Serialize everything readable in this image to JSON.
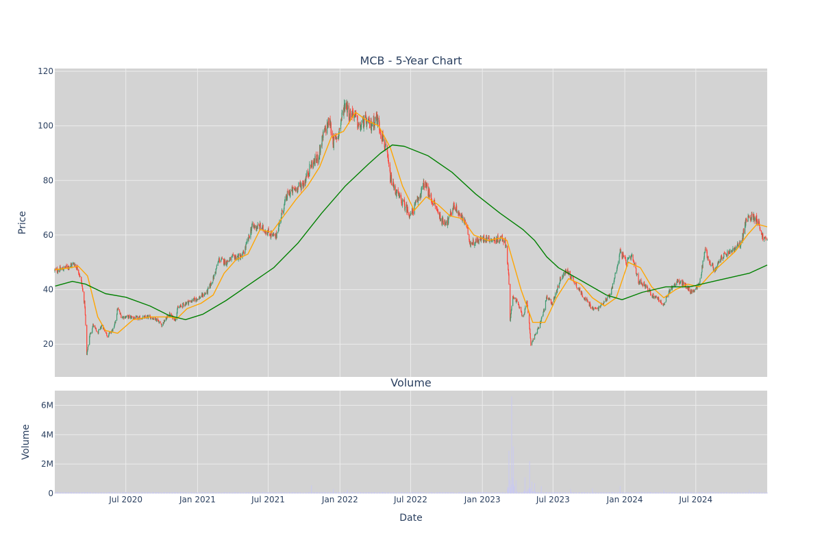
{
  "chart_data": [
    {
      "type": "candlestick",
      "title": "MCB - 5-Year Chart",
      "ylabel": "Price",
      "ylim": [
        8,
        121
      ],
      "yticks": [
        20,
        40,
        60,
        80,
        100,
        120
      ],
      "xlim": [
        "2020-01-01",
        "2024-12-31"
      ],
      "increasing_color": "#3d9970",
      "decreasing_color": "#ff4136",
      "ohlc_shape_points": [
        [
          "2020-01-02",
          47.0
        ],
        [
          "2020-01-20",
          47.5
        ],
        [
          "2020-02-05",
          48.5
        ],
        [
          "2020-02-20",
          49.5
        ],
        [
          "2020-03-02",
          47
        ],
        [
          "2020-03-10",
          42
        ],
        [
          "2020-03-18",
          34
        ],
        [
          "2020-03-23",
          16
        ],
        [
          "2020-03-30",
          23
        ],
        [
          "2020-04-08",
          27
        ],
        [
          "2020-04-20",
          24
        ],
        [
          "2020-05-01",
          27
        ],
        [
          "2020-05-15",
          23
        ],
        [
          "2020-06-01",
          26
        ],
        [
          "2020-06-10",
          33
        ],
        [
          "2020-06-20",
          30
        ],
        [
          "2020-07-10",
          30
        ],
        [
          "2020-08-01",
          29.5
        ],
        [
          "2020-09-01",
          30
        ],
        [
          "2020-09-20",
          29
        ],
        [
          "2020-10-01",
          27
        ],
        [
          "2020-10-20",
          31
        ],
        [
          "2020-11-05",
          29
        ],
        [
          "2020-11-10",
          33
        ],
        [
          "2020-12-01",
          35
        ],
        [
          "2021-01-05",
          37
        ],
        [
          "2021-01-25",
          39
        ],
        [
          "2021-02-10",
          44
        ],
        [
          "2021-02-25",
          51
        ],
        [
          "2021-03-15",
          50
        ],
        [
          "2021-04-05",
          52
        ],
        [
          "2021-04-25",
          52
        ],
        [
          "2021-05-10",
          58
        ],
        [
          "2021-05-20",
          63
        ],
        [
          "2021-06-10",
          63
        ],
        [
          "2021-07-01",
          61
        ],
        [
          "2021-07-20",
          59
        ],
        [
          "2021-08-05",
          68
        ],
        [
          "2021-08-20",
          75
        ],
        [
          "2021-09-10",
          77
        ],
        [
          "2021-09-30",
          79
        ],
        [
          "2021-10-20",
          86
        ],
        [
          "2021-11-05",
          88
        ],
        [
          "2021-11-20",
          97
        ],
        [
          "2021-12-05",
          102
        ],
        [
          "2021-12-15",
          94
        ],
        [
          "2021-12-28",
          97
        ],
        [
          "2022-01-05",
          103
        ],
        [
          "2022-01-15",
          109
        ],
        [
          "2022-01-25",
          104
        ],
        [
          "2022-02-05",
          105
        ],
        [
          "2022-02-20",
          99
        ],
        [
          "2022-03-05",
          102
        ],
        [
          "2022-03-20",
          100
        ],
        [
          "2022-04-05",
          103
        ],
        [
          "2022-04-20",
          96
        ],
        [
          "2022-05-01",
          90
        ],
        [
          "2022-05-10",
          81
        ],
        [
          "2022-05-20",
          77
        ],
        [
          "2022-06-05",
          73
        ],
        [
          "2022-06-20",
          70
        ],
        [
          "2022-07-01",
          67
        ],
        [
          "2022-07-20",
          73
        ],
        [
          "2022-08-05",
          79
        ],
        [
          "2022-08-20",
          74
        ],
        [
          "2022-09-01",
          71
        ],
        [
          "2022-09-20",
          65
        ],
        [
          "2022-10-05",
          65
        ],
        [
          "2022-10-20",
          71
        ],
        [
          "2022-11-05",
          67
        ],
        [
          "2022-11-20",
          64
        ],
        [
          "2022-12-01",
          57
        ],
        [
          "2022-12-20",
          58
        ],
        [
          "2023-01-10",
          59
        ],
        [
          "2023-02-01",
          58
        ],
        [
          "2023-02-20",
          59
        ],
        [
          "2023-03-02",
          57
        ],
        [
          "2023-03-09",
          46
        ],
        [
          "2023-03-13",
          28
        ],
        [
          "2023-03-20",
          38
        ],
        [
          "2023-04-01",
          35
        ],
        [
          "2023-04-15",
          30
        ],
        [
          "2023-04-25",
          35
        ],
        [
          "2023-05-01",
          28
        ],
        [
          "2023-05-05",
          20
        ],
        [
          "2023-05-15",
          23
        ],
        [
          "2023-05-25",
          26
        ],
        [
          "2023-06-05",
          31
        ],
        [
          "2023-06-15",
          37
        ],
        [
          "2023-06-30",
          35
        ],
        [
          "2023-07-20",
          44
        ],
        [
          "2023-08-05",
          47
        ],
        [
          "2023-08-20",
          44
        ],
        [
          "2023-09-10",
          39
        ],
        [
          "2023-09-25",
          36
        ],
        [
          "2023-10-10",
          33
        ],
        [
          "2023-10-25",
          33
        ],
        [
          "2023-11-10",
          36
        ],
        [
          "2023-11-25",
          38
        ],
        [
          "2023-12-10",
          47
        ],
        [
          "2023-12-20",
          54
        ],
        [
          "2024-01-05",
          50
        ],
        [
          "2024-01-20",
          52
        ],
        [
          "2024-02-05",
          43
        ],
        [
          "2024-02-20",
          42
        ],
        [
          "2024-03-10",
          38
        ],
        [
          "2024-03-25",
          37
        ],
        [
          "2024-04-10",
          34
        ],
        [
          "2024-04-25",
          40
        ],
        [
          "2024-05-15",
          43
        ],
        [
          "2024-06-01",
          42
        ],
        [
          "2024-06-20",
          39
        ],
        [
          "2024-07-10",
          42
        ],
        [
          "2024-07-25",
          55
        ],
        [
          "2024-08-05",
          50
        ],
        [
          "2024-08-20",
          47
        ],
        [
          "2024-09-05",
          52
        ],
        [
          "2024-09-20",
          53
        ],
        [
          "2024-10-10",
          55
        ],
        [
          "2024-10-25",
          57
        ],
        [
          "2024-11-06",
          65
        ],
        [
          "2024-11-20",
          67
        ],
        [
          "2024-12-05",
          66
        ],
        [
          "2024-12-20",
          59
        ],
        [
          "2024-12-31",
          58
        ]
      ],
      "overlays": [
        {
          "kind": "short moving average",
          "color": "#ffa500",
          "shape_points": [
            [
              "2020-01-02",
              47.3
            ],
            [
              "2020-02-10",
              48
            ],
            [
              "2020-03-01",
              48.6
            ],
            [
              "2020-03-25",
              45
            ],
            [
              "2020-04-20",
              30
            ],
            [
              "2020-05-10",
              25
            ],
            [
              "2020-06-10",
              24
            ],
            [
              "2020-07-20",
              29
            ],
            [
              "2020-09-01",
              30
            ],
            [
              "2020-10-15",
              30
            ],
            [
              "2020-11-10",
              29.5
            ],
            [
              "2020-12-05",
              33
            ],
            [
              "2021-01-10",
              35
            ],
            [
              "2021-02-10",
              38
            ],
            [
              "2021-03-10",
              46
            ],
            [
              "2021-04-10",
              51
            ],
            [
              "2021-05-10",
              53
            ],
            [
              "2021-06-10",
              62
            ],
            [
              "2021-07-10",
              61
            ],
            [
              "2021-08-10",
              67
            ],
            [
              "2021-09-10",
              73
            ],
            [
              "2021-10-10",
              78
            ],
            [
              "2021-11-10",
              85
            ],
            [
              "2021-12-10",
              96
            ],
            [
              "2022-01-10",
              98
            ],
            [
              "2022-02-10",
              105
            ],
            [
              "2022-03-10",
              102
            ],
            [
              "2022-04-10",
              100
            ],
            [
              "2022-05-10",
              92
            ],
            [
              "2022-06-10",
              78
            ],
            [
              "2022-07-10",
              69
            ],
            [
              "2022-08-10",
              74
            ],
            [
              "2022-09-10",
              71
            ],
            [
              "2022-10-10",
              67
            ],
            [
              "2022-11-10",
              66
            ],
            [
              "2022-12-10",
              60
            ],
            [
              "2023-01-15",
              58
            ],
            [
              "2023-02-20",
              59
            ],
            [
              "2023-03-05",
              58
            ],
            [
              "2023-04-10",
              40
            ],
            [
              "2023-05-10",
              28
            ],
            [
              "2023-06-10",
              28
            ],
            [
              "2023-07-10",
              37
            ],
            [
              "2023-08-10",
              44
            ],
            [
              "2023-09-10",
              42
            ],
            [
              "2023-10-10",
              37
            ],
            [
              "2023-11-10",
              34
            ],
            [
              "2023-12-10",
              37
            ],
            [
              "2024-01-10",
              50
            ],
            [
              "2024-02-10",
              48
            ],
            [
              "2024-03-10",
              41
            ],
            [
              "2024-04-10",
              37
            ],
            [
              "2024-05-10",
              40
            ],
            [
              "2024-06-10",
              42
            ],
            [
              "2024-07-10",
              41
            ],
            [
              "2024-08-10",
              46
            ],
            [
              "2024-09-10",
              50
            ],
            [
              "2024-10-10",
              54
            ],
            [
              "2024-11-10",
              60
            ],
            [
              "2024-12-05",
              64
            ],
            [
              "2024-12-31",
              63
            ]
          ]
        },
        {
          "kind": "long moving average",
          "color": "#008000",
          "shape_points": [
            [
              "2020-01-02",
              41.3
            ],
            [
              "2020-02-15",
              43
            ],
            [
              "2020-03-20",
              42
            ],
            [
              "2020-05-10",
              38.5
            ],
            [
              "2020-07-01",
              37.2
            ],
            [
              "2020-09-01",
              34
            ],
            [
              "2020-10-20",
              30.5
            ],
            [
              "2020-12-01",
              29
            ],
            [
              "2021-01-15",
              31
            ],
            [
              "2021-03-15",
              36
            ],
            [
              "2021-05-15",
              42
            ],
            [
              "2021-07-15",
              48
            ],
            [
              "2021-09-15",
              57
            ],
            [
              "2021-11-15",
              68
            ],
            [
              "2022-01-15",
              78
            ],
            [
              "2022-03-15",
              86
            ],
            [
              "2022-04-15",
              90
            ],
            [
              "2022-05-15",
              93
            ],
            [
              "2022-06-15",
              92.5
            ],
            [
              "2022-08-15",
              89
            ],
            [
              "2022-10-15",
              83
            ],
            [
              "2022-12-15",
              75
            ],
            [
              "2023-02-15",
              68
            ],
            [
              "2023-04-15",
              62
            ],
            [
              "2023-05-15",
              58
            ],
            [
              "2023-06-15",
              52
            ],
            [
              "2023-07-15",
              48
            ],
            [
              "2023-09-15",
              43
            ],
            [
              "2023-11-15",
              38
            ],
            [
              "2023-12-25",
              36.3
            ],
            [
              "2024-02-15",
              39
            ],
            [
              "2024-04-15",
              41
            ],
            [
              "2024-06-15",
              41
            ],
            [
              "2024-08-15",
              43
            ],
            [
              "2024-10-15",
              45
            ],
            [
              "2024-11-15",
              46
            ],
            [
              "2024-12-31",
              49
            ]
          ]
        }
      ]
    },
    {
      "type": "bar",
      "title": "Volume",
      "xlabel": "Date",
      "ylabel": "Volume",
      "ylim": [
        0,
        7000000
      ],
      "yticks": [
        0,
        2000000,
        4000000,
        6000000
      ],
      "ytick_labels": [
        "0",
        "2M",
        "4M",
        "6M"
      ],
      "xtick_dates": [
        "2020-07-01",
        "2021-01-01",
        "2021-07-01",
        "2022-01-01",
        "2022-07-01",
        "2023-01-01",
        "2023-07-01",
        "2024-01-01",
        "2024-07-01"
      ],
      "xtick_labels": [
        "Jul 2020",
        "Jan 2021",
        "Jul 2021",
        "Jan 2022",
        "Jul 2022",
        "Jan 2023",
        "Jul 2023",
        "Jan 2024",
        "Jul 2024"
      ],
      "bar_color": "#c9c9f2",
      "baseline_volume": 60000,
      "spikes": [
        [
          "2021-10-20",
          550000
        ],
        [
          "2021-12-15",
          300000
        ],
        [
          "2022-01-20",
          250000
        ],
        [
          "2023-03-10",
          2900000
        ],
        [
          "2023-03-17",
          6600000
        ],
        [
          "2023-03-21",
          3200000
        ],
        [
          "2023-03-28",
          900000
        ],
        [
          "2023-04-20",
          1100000
        ],
        [
          "2023-05-02",
          2200000
        ],
        [
          "2023-05-08",
          800000
        ],
        [
          "2023-05-15",
          700000
        ],
        [
          "2023-06-01",
          500000
        ],
        [
          "2023-08-15",
          300000
        ],
        [
          "2023-10-10",
          350000
        ],
        [
          "2023-12-20",
          500000
        ],
        [
          "2024-04-10",
          250000
        ],
        [
          "2024-11-15",
          250000
        ]
      ]
    }
  ]
}
